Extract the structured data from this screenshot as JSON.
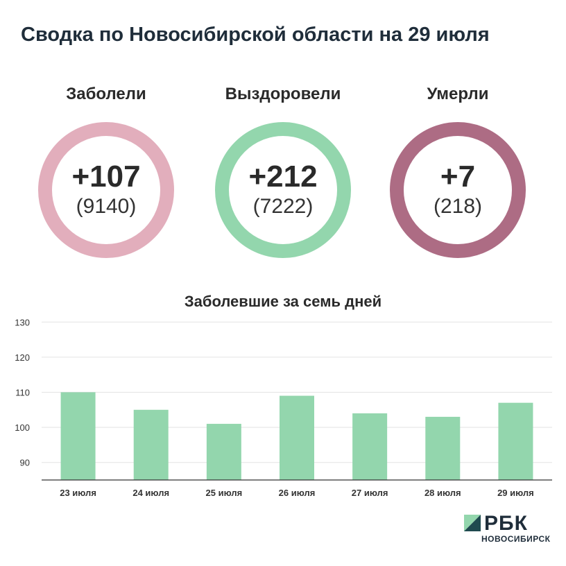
{
  "title": "Сводка по Новосибирской области на 29 июля",
  "stats": {
    "cases": {
      "label": "Заболели",
      "new": "+107",
      "total": "(9140)",
      "color": "#e2aebc"
    },
    "recovered": {
      "label": "Выздоровели",
      "new": "+212",
      "total": "(7222)",
      "color": "#93d6ad"
    },
    "deaths": {
      "label": "Умерли",
      "new": "+7",
      "total": "(218)",
      "color": "#ad6c84"
    }
  },
  "chart_data": {
    "type": "bar",
    "title": "Заболевшие за семь дней",
    "categories": [
      "23 июля",
      "24 июля",
      "25 июля",
      "26 июля",
      "27 июля",
      "28 июля",
      "29 июля"
    ],
    "values": [
      110,
      105,
      101,
      109,
      104,
      103,
      107
    ],
    "ylim": [
      85,
      130
    ],
    "yticks": [
      90,
      100,
      110,
      120,
      130
    ],
    "bar_color": "#93d6ad",
    "grid": true,
    "xlabel": "",
    "ylabel": ""
  },
  "logo": {
    "word": "РБК",
    "sub": "НОВОСИБИРСК",
    "mark_light": "#93d6ad",
    "mark_dark": "#1f4a4f"
  }
}
